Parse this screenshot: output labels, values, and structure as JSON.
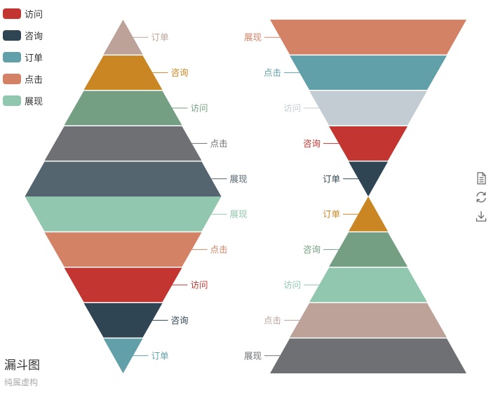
{
  "legend": {
    "items": [
      {
        "label": "访问",
        "color": "#c23531"
      },
      {
        "label": "咨询",
        "color": "#2f4554"
      },
      {
        "label": "订单",
        "color": "#61a0a8"
      },
      {
        "label": "点击",
        "color": "#d48265"
      },
      {
        "label": "展现",
        "color": "#91c7ae"
      }
    ]
  },
  "title": {
    "text": "漏斗图",
    "subtext": "纯属虚构"
  },
  "toolbox": {
    "icons": [
      "data-view-icon",
      "restore-icon",
      "save-image-icon"
    ]
  },
  "chart_data": [
    {
      "type": "funnel",
      "sort": "ascending",
      "label_side": "right",
      "segments": [
        {
          "name": "订单",
          "value": 20,
          "color": "#bda29a",
          "label_color": "#bda29a"
        },
        {
          "name": "咨询",
          "value": 40,
          "color": "#ca8622",
          "label_color": "#ca8622"
        },
        {
          "name": "访问",
          "value": 60,
          "color": "#749f83",
          "label_color": "#749f83"
        },
        {
          "name": "点击",
          "value": 80,
          "color": "#6e7074",
          "label_color": "#6e7074"
        },
        {
          "name": "展现",
          "value": 100,
          "color": "#546570",
          "label_color": "#546570"
        }
      ]
    },
    {
      "type": "funnel",
      "sort": "descending",
      "label_side": "right",
      "segments": [
        {
          "name": "展现",
          "value": 100,
          "color": "#91c7ae",
          "label_color": "#91c7ae"
        },
        {
          "name": "点击",
          "value": 80,
          "color": "#d48265",
          "label_color": "#d48265"
        },
        {
          "name": "访问",
          "value": 60,
          "color": "#c23531",
          "label_color": "#c23531"
        },
        {
          "name": "咨询",
          "value": 40,
          "color": "#2f4554",
          "label_color": "#2f4554"
        },
        {
          "name": "订单",
          "value": 20,
          "color": "#61a0a8",
          "label_color": "#61a0a8"
        }
      ]
    },
    {
      "type": "funnel",
      "sort": "descending",
      "label_side": "left",
      "segments": [
        {
          "name": "展现",
          "value": 100,
          "color": "#d48265",
          "label_color": "#d48265"
        },
        {
          "name": "点击",
          "value": 80,
          "color": "#61a0a8",
          "label_color": "#61a0a8"
        },
        {
          "name": "访问",
          "value": 60,
          "color": "#c4ccd3",
          "label_color": "#c4ccd3"
        },
        {
          "name": "咨询",
          "value": 40,
          "color": "#c23531",
          "label_color": "#c23531"
        },
        {
          "name": "订单",
          "value": 20,
          "color": "#2f4554",
          "label_color": "#2f4554"
        }
      ]
    },
    {
      "type": "funnel",
      "sort": "ascending",
      "label_side": "left",
      "segments": [
        {
          "name": "订单",
          "value": 20,
          "color": "#ca8622",
          "label_color": "#ca8622"
        },
        {
          "name": "咨询",
          "value": 40,
          "color": "#749f83",
          "label_color": "#749f83"
        },
        {
          "name": "访问",
          "value": 60,
          "color": "#91c7ae",
          "label_color": "#91c7ae"
        },
        {
          "name": "点击",
          "value": 80,
          "color": "#bda29a",
          "label_color": "#bda29a"
        },
        {
          "name": "展现",
          "value": 100,
          "color": "#6e7074",
          "label_color": "#6e7074"
        }
      ]
    }
  ]
}
